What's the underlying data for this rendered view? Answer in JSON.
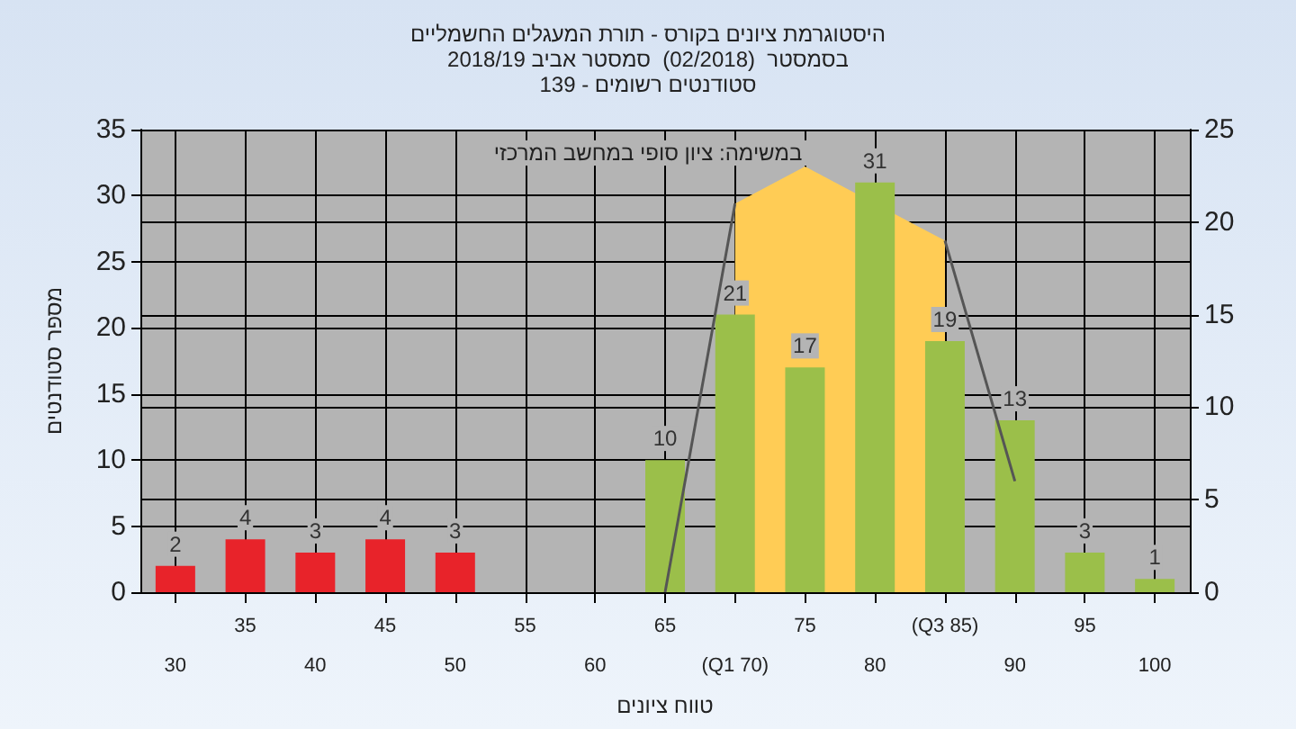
{
  "chart_data": {
    "type": "bar",
    "title": "היסטוגרמת ציונים בקורס - תורת המעגלים החשמליים",
    "subtitle": "בסמסטר  (02/2018)  סמסטר אביב 2018/19\nסטודנטים רשומים - 139",
    "annotations": [
      "במשימה: ציון סופי במחשב המרכזי"
    ],
    "xlabel": "טווח ציונים",
    "ylabel": "מספר סטודנטים",
    "categories": [
      "30",
      "35",
      "40",
      "45",
      "50",
      "55",
      "60",
      "65",
      "(Q1 70)",
      "75",
      "80",
      "(Q3 85)",
      "90",
      "95",
      "100"
    ],
    "series": [
      {
        "type": "area",
        "axis": "y2",
        "color": "#ffcc55",
        "values": [
          null,
          null,
          null,
          null,
          null,
          null,
          null,
          null,
          21,
          23,
          null,
          19,
          null,
          null,
          null
        ]
      },
      {
        "type": "line",
        "axis": "y2",
        "color": "#555555",
        "values": [
          null,
          null,
          null,
          null,
          null,
          null,
          null,
          0,
          21,
          null,
          null,
          19,
          6,
          null,
          null
        ]
      },
      {
        "colors": [
          "#e8232a",
          "#e8232a",
          "#e8232a",
          "#e8232a",
          "#e8232a",
          "#9bbf4a",
          "#9bbf4a",
          "#9bbf4a",
          "#9bbf4a",
          "#9bbf4a",
          "#9bbf4a",
          "#9bbf4a",
          "#9bbf4a",
          "#9bbf4a",
          "#9bbf4a"
        ],
        "values": [
          2,
          4,
          3,
          4,
          3,
          0,
          0,
          10,
          21,
          17,
          31,
          19,
          13,
          3,
          1
        ],
        "value_labels": [
          "2",
          "4",
          "3",
          "4",
          "3",
          null,
          null,
          "10",
          "21",
          "17",
          "31",
          "19",
          "13",
          "3",
          "1"
        ]
      }
    ],
    "ylim": [
      0,
      35
    ],
    "yticks": [
      0,
      5,
      10,
      15,
      20,
      25,
      30,
      35
    ],
    "y2lim": [
      0,
      25
    ],
    "y2ticks": [
      0,
      5,
      10,
      15,
      20,
      25
    ],
    "grid": true
  }
}
